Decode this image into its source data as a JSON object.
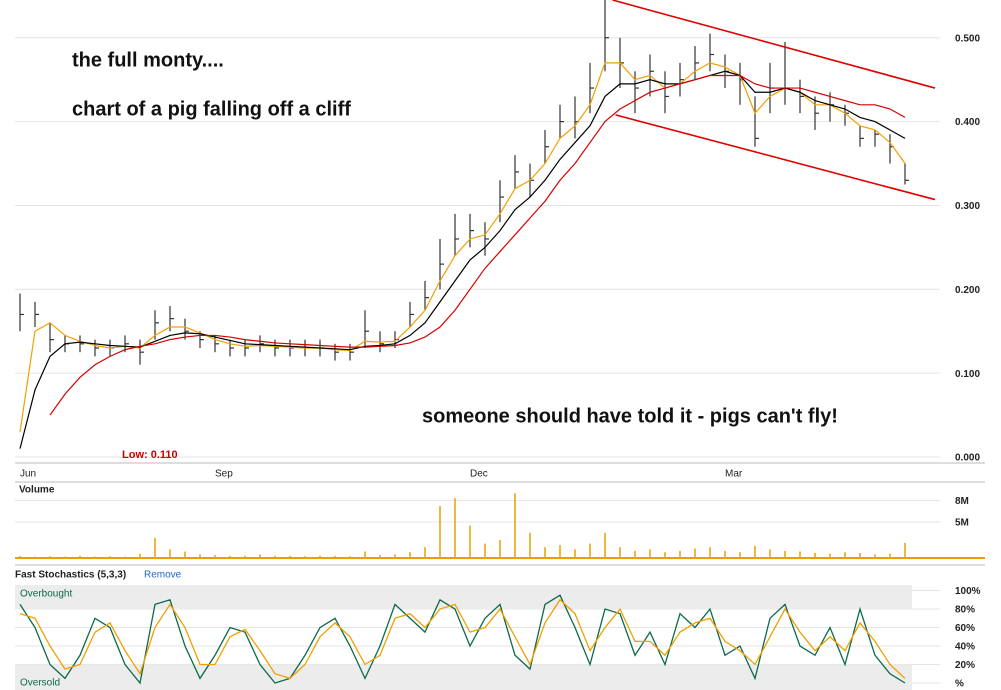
{
  "chart_data": [
    {
      "type": "ohlc",
      "annotations": [
        "the full monty....",
        "chart of a pig falling off a cliff",
        "someone should have told it - pigs can't fly!"
      ],
      "low_label": "Low: 0.110",
      "categories": [
        "Jun",
        null,
        null,
        null,
        null,
        null,
        null,
        null,
        null,
        null,
        null,
        null,
        null,
        "Sep",
        null,
        null,
        null,
        null,
        null,
        null,
        null,
        null,
        null,
        null,
        null,
        null,
        null,
        null,
        null,
        null,
        "Dec",
        null,
        null,
        null,
        null,
        null,
        null,
        null,
        null,
        null,
        null,
        null,
        null,
        null,
        null,
        null,
        null,
        "Mar",
        null,
        null,
        null,
        null,
        null,
        null,
        null,
        null,
        null,
        null,
        null,
        null
      ],
      "close": [
        0.17,
        0.17,
        0.14,
        0.135,
        0.135,
        0.13,
        0.13,
        0.135,
        0.125,
        0.16,
        0.165,
        0.15,
        0.14,
        0.135,
        0.13,
        0.13,
        0.135,
        0.13,
        0.13,
        0.13,
        0.13,
        0.125,
        0.125,
        0.15,
        0.135,
        0.14,
        0.17,
        0.19,
        0.23,
        0.26,
        0.27,
        0.26,
        0.31,
        0.34,
        0.33,
        0.37,
        0.4,
        0.4,
        0.44,
        0.5,
        0.47,
        0.44,
        0.46,
        0.43,
        0.45,
        0.47,
        0.48,
        0.46,
        0.45,
        0.38,
        0.44,
        0.44,
        0.43,
        0.41,
        0.42,
        0.41,
        0.38,
        0.385,
        0.37,
        0.33
      ],
      "high": [
        0.195,
        0.185,
        0.16,
        0.145,
        0.145,
        0.14,
        0.14,
        0.145,
        0.14,
        0.175,
        0.18,
        0.165,
        0.15,
        0.145,
        0.14,
        0.14,
        0.145,
        0.14,
        0.14,
        0.14,
        0.14,
        0.135,
        0.135,
        0.175,
        0.15,
        0.15,
        0.185,
        0.21,
        0.26,
        0.29,
        0.29,
        0.28,
        0.33,
        0.36,
        0.35,
        0.39,
        0.42,
        0.43,
        0.47,
        0.545,
        0.5,
        0.46,
        0.48,
        0.46,
        0.47,
        0.49,
        0.505,
        0.48,
        0.47,
        0.43,
        0.47,
        0.495,
        0.45,
        0.43,
        0.435,
        0.42,
        0.395,
        0.39,
        0.385,
        0.35
      ],
      "low": [
        0.15,
        0.155,
        0.125,
        0.125,
        0.125,
        0.12,
        0.12,
        0.125,
        0.11,
        0.14,
        0.15,
        0.14,
        0.13,
        0.125,
        0.12,
        0.12,
        0.125,
        0.12,
        0.12,
        0.12,
        0.12,
        0.115,
        0.115,
        0.13,
        0.125,
        0.13,
        0.155,
        0.175,
        0.2,
        0.24,
        0.25,
        0.24,
        0.28,
        0.32,
        0.31,
        0.35,
        0.38,
        0.38,
        0.41,
        0.46,
        0.44,
        0.41,
        0.43,
        0.41,
        0.43,
        0.45,
        0.46,
        0.44,
        0.42,
        0.37,
        0.41,
        0.42,
        0.41,
        0.39,
        0.4,
        0.395,
        0.37,
        0.37,
        0.35,
        0.325
      ],
      "bar_color": "#333333",
      "series": [
        {
          "color": "#f0a000",
          "values": [
            0.03,
            0.15,
            0.16,
            0.145,
            0.138,
            0.133,
            0.13,
            0.132,
            0.13,
            0.145,
            0.155,
            0.155,
            0.148,
            0.14,
            0.135,
            0.132,
            0.133,
            0.132,
            0.131,
            0.13,
            0.13,
            0.128,
            0.127,
            0.138,
            0.137,
            0.138,
            0.155,
            0.175,
            0.21,
            0.24,
            0.26,
            0.265,
            0.29,
            0.32,
            0.33,
            0.35,
            0.38,
            0.395,
            0.42,
            0.47,
            0.47,
            0.45,
            0.455,
            0.44,
            0.445,
            0.46,
            0.47,
            0.465,
            0.455,
            0.41,
            0.43,
            0.44,
            0.435,
            0.42,
            0.42,
            0.41,
            0.395,
            0.39,
            0.375,
            0.35
          ]
        },
        {
          "color": "#000000",
          "values": [
            0.01,
            0.08,
            0.12,
            0.135,
            0.137,
            0.135,
            0.133,
            0.132,
            0.131,
            0.138,
            0.145,
            0.148,
            0.147,
            0.143,
            0.139,
            0.135,
            0.134,
            0.133,
            0.132,
            0.131,
            0.13,
            0.129,
            0.128,
            0.132,
            0.133,
            0.135,
            0.145,
            0.16,
            0.185,
            0.21,
            0.235,
            0.25,
            0.27,
            0.295,
            0.31,
            0.33,
            0.355,
            0.375,
            0.395,
            0.43,
            0.445,
            0.445,
            0.45,
            0.445,
            0.445,
            0.45,
            0.455,
            0.46,
            0.455,
            0.435,
            0.435,
            0.44,
            0.435,
            0.425,
            0.42,
            0.415,
            0.405,
            0.4,
            0.39,
            0.38
          ]
        },
        {
          "color": "#d40000",
          "values": [
            null,
            null,
            0.05,
            0.075,
            0.095,
            0.11,
            0.12,
            0.128,
            0.132,
            0.135,
            0.14,
            0.143,
            0.145,
            0.145,
            0.143,
            0.14,
            0.138,
            0.136,
            0.135,
            0.134,
            0.133,
            0.132,
            0.131,
            0.131,
            0.132,
            0.133,
            0.136,
            0.143,
            0.155,
            0.175,
            0.2,
            0.225,
            0.245,
            0.265,
            0.285,
            0.305,
            0.33,
            0.35,
            0.375,
            0.4,
            0.415,
            0.425,
            0.435,
            0.44,
            0.445,
            0.45,
            0.455,
            0.455,
            0.455,
            0.445,
            0.44,
            0.44,
            0.44,
            0.435,
            0.43,
            0.425,
            0.42,
            0.42,
            0.415,
            0.405
          ]
        }
      ],
      "trendlines": [
        {
          "color": "#e00000",
          "start": [
            39.5,
            0.545
          ],
          "end": [
            61,
            0.44
          ]
        },
        {
          "color": "#e00000",
          "start": [
            39.7,
            0.408
          ],
          "end": [
            61,
            0.307
          ]
        }
      ],
      "ylim": [
        0,
        0.545
      ],
      "yticks": [
        {
          "value": 0,
          "label": "0.000"
        },
        {
          "value": 0.1,
          "label": "0.100"
        },
        {
          "value": 0.2,
          "label": "0.200"
        },
        {
          "value": 0.3,
          "label": "0.300"
        },
        {
          "value": 0.4,
          "label": "0.400"
        },
        {
          "value": 0.5,
          "label": "0.500"
        }
      ],
      "grid": true
    },
    {
      "type": "bar",
      "title": "Volume",
      "color": "#e8a000",
      "values": [
        300000,
        200000,
        250000,
        200000,
        300000,
        200000,
        250000,
        200000,
        600000,
        2800000,
        1200000,
        900000,
        500000,
        400000,
        300000,
        300000,
        500000,
        300000,
        300000,
        250000,
        300000,
        300000,
        250000,
        900000,
        400000,
        500000,
        800000,
        1500000,
        7200000,
        8300000,
        4500000,
        2000000,
        2500000,
        9000000,
        3500000,
        1500000,
        1800000,
        1200000,
        2000000,
        3500000,
        1500000,
        1000000,
        1200000,
        800000,
        1000000,
        1300000,
        1500000,
        1000000,
        800000,
        1700000,
        1200000,
        1000000,
        900000,
        700000,
        600000,
        800000,
        700000,
        500000,
        600000,
        2100000
      ],
      "ylim": [
        0,
        10000000
      ],
      "yticks": [
        {
          "value": 5000000,
          "label": "5M"
        },
        {
          "value": 8000000,
          "label": "8M"
        }
      ],
      "grid": true
    },
    {
      "type": "line",
      "title": "Fast Stochastics (5,3,3)",
      "link": "Remove",
      "series": [
        {
          "color": "#0a6a4a",
          "values": [
            85,
            60,
            20,
            5,
            30,
            70,
            60,
            20,
            0,
            85,
            90,
            40,
            5,
            30,
            60,
            55,
            20,
            0,
            5,
            30,
            60,
            70,
            40,
            5,
            40,
            85,
            70,
            55,
            90,
            80,
            40,
            70,
            85,
            30,
            15,
            85,
            95,
            60,
            20,
            80,
            75,
            30,
            55,
            20,
            75,
            60,
            80,
            30,
            40,
            5,
            70,
            85,
            40,
            30,
            60,
            20,
            80,
            30,
            10,
            0
          ]
        },
        {
          "color": "#f0a000",
          "values": [
            75,
            70,
            40,
            15,
            20,
            55,
            65,
            35,
            10,
            60,
            85,
            60,
            20,
            20,
            50,
            58,
            35,
            10,
            5,
            20,
            50,
            65,
            50,
            20,
            30,
            70,
            75,
            60,
            80,
            85,
            55,
            60,
            80,
            50,
            20,
            65,
            90,
            75,
            35,
            60,
            80,
            45,
            45,
            30,
            55,
            65,
            70,
            45,
            35,
            20,
            50,
            80,
            55,
            35,
            50,
            35,
            65,
            45,
            20,
            5
          ]
        }
      ],
      "overbought": {
        "label": "Overbought",
        "value": 80
      },
      "oversold": {
        "label": "Oversold",
        "value": 20
      },
      "ylim": [
        -8,
        106
      ],
      "yticks": [
        {
          "value": 0,
          "label": "%"
        },
        {
          "value": 20,
          "label": "20%"
        },
        {
          "value": 40,
          "label": "40%"
        },
        {
          "value": 60,
          "label": "60%"
        },
        {
          "value": 80,
          "label": "80%"
        },
        {
          "value": 100,
          "label": "100%"
        }
      ],
      "grid": true
    }
  ]
}
